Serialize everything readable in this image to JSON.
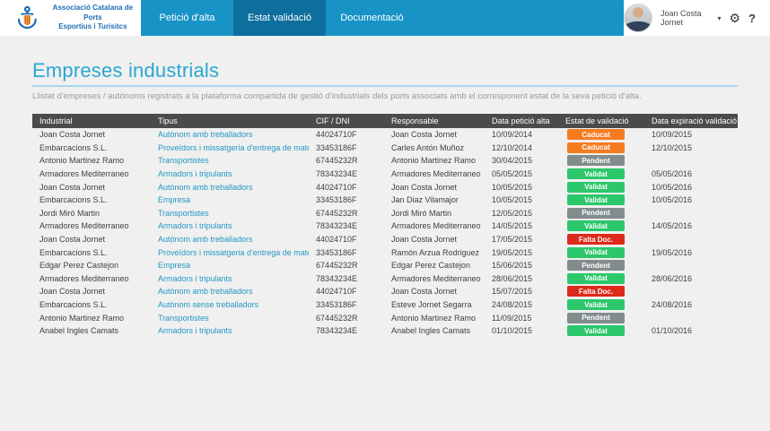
{
  "brand": {
    "line1": "Associació Catalana de Ports",
    "line2": "Esportius i Turisitcs"
  },
  "nav": {
    "tabs": [
      {
        "label": "Petició d'alta",
        "active": false
      },
      {
        "label": "Estat validació",
        "active": true
      },
      {
        "label": "Documentació",
        "active": false
      }
    ]
  },
  "user": {
    "name": "Joan Costa Jornet",
    "caret_glyph": "▾",
    "gear_glyph": "⚙",
    "help_glyph": "?"
  },
  "page": {
    "title": "Empreses industrials",
    "subtitle": "Llistat d'empreses / autònoms registrats a la plataforma compartida de gestió d'industrials dels ports associats amb el corresponent estat de la seva petició d'alta."
  },
  "colors": {
    "nav_bar": "#1793c6",
    "nav_active_tab": "#0e6f9e",
    "title": "#2ba7d4",
    "link": "#2697c6",
    "table_header_bg": "#4b4b4b"
  },
  "table": {
    "columns": [
      "Industrial",
      "Tipus",
      "CIF / DNI",
      "Responsable",
      "Data petició alta",
      "Estat de validació",
      "Data expiració validació"
    ],
    "status_colors": {
      "Caducat": "#f47c20",
      "Validat": "#2bc76a",
      "Pendent": "#828c8c",
      "Falta Doc.": "#dd2a1b"
    },
    "rows": [
      {
        "industrial": "Joan Costa Jornet",
        "tipus": "Autònom amb treballadors",
        "cif": "44024710F",
        "responsable": "Joan Costa Jornet",
        "data_alta": "10/09/2014",
        "estat": "Caducat",
        "data_expiracio": "10/09/2015"
      },
      {
        "industrial": "Embarcacions S.L.",
        "tipus": "Proveïdors i missatgeria d'entrega de material",
        "cif": "33453186F",
        "responsable": "Carles Antón Muñoz",
        "data_alta": "12/10/2014",
        "estat": "Caducat",
        "data_expiracio": "12/10/2015"
      },
      {
        "industrial": "Antonio Martinez Ramo",
        "tipus": "Transportistes",
        "cif": "67445232R",
        "responsable": "Antonio Martinez Ramo",
        "data_alta": "30/04/2015",
        "estat": "Pendent",
        "data_expiracio": ""
      },
      {
        "industrial": "Armadores Mediterraneo",
        "tipus": "Armadors i tripulants",
        "cif": "78343234E",
        "responsable": "Armadores Mediterraneo",
        "data_alta": "05/05/2015",
        "estat": "Validat",
        "data_expiracio": "05/05/2016"
      },
      {
        "industrial": "Joan Costa Jornet",
        "tipus": "Autònom amb treballadors",
        "cif": "44024710F",
        "responsable": "Joan Costa Jornet",
        "data_alta": "10/05/2015",
        "estat": "Validat",
        "data_expiracio": "10/05/2016"
      },
      {
        "industrial": "Embarcacions S.L.",
        "tipus": "Empresa",
        "cif": "33453186F",
        "responsable": "Jan Diaz Vilamajor",
        "data_alta": "10/05/2015",
        "estat": "Validat",
        "data_expiracio": "10/05/2016"
      },
      {
        "industrial": "Jordi Miró Martin",
        "tipus": "Transportistes",
        "cif": "67445232R",
        "responsable": "Jordi Miró Martin",
        "data_alta": "12/05/2015",
        "estat": "Pendent",
        "data_expiracio": ""
      },
      {
        "industrial": "Armadores Mediterraneo",
        "tipus": "Armadors i tripulants",
        "cif": "78343234E",
        "responsable": "Armadores Mediterraneo",
        "data_alta": "14/05/2015",
        "estat": "Validat",
        "data_expiracio": "14/05/2016"
      },
      {
        "industrial": "Joan Costa Jornet",
        "tipus": "Autònom amb treballadors",
        "cif": "44024710F",
        "responsable": "Joan Costa Jornet",
        "data_alta": "17/05/2015",
        "estat": "Falta Doc.",
        "data_expiracio": ""
      },
      {
        "industrial": "Embarcacions S.L.",
        "tipus": "Proveïdors i missatgeria d'entrega de material",
        "cif": "33453186F",
        "responsable": "Ramón Arzua Rodriguez",
        "data_alta": "19/05/2015",
        "estat": "Validat",
        "data_expiracio": "19/05/2016"
      },
      {
        "industrial": "Edgar Perez Castejon",
        "tipus": "Empresa",
        "cif": "67445232R",
        "responsable": "Edgar Perez Castejon",
        "data_alta": "15/06/2015",
        "estat": "Pendent",
        "data_expiracio": ""
      },
      {
        "industrial": "Armadores Mediterraneo",
        "tipus": "Armadors i tripulants",
        "cif": "78343234E",
        "responsable": "Armadores Mediterraneo",
        "data_alta": "28/06/2015",
        "estat": "Validat",
        "data_expiracio": "28/06/2016"
      },
      {
        "industrial": "Joan Costa Jornet",
        "tipus": "Autònom amb treballadors",
        "cif": "44024710F",
        "responsable": "Joan Costa Jornet",
        "data_alta": "15/07/2015",
        "estat": "Falta Doc.",
        "data_expiracio": ""
      },
      {
        "industrial": "Embarcacions S.L.",
        "tipus": "Autònom sense treballadors",
        "cif": "33453186F",
        "responsable": "Esteve Jornet Segarra",
        "data_alta": "24/08/2015",
        "estat": "Validat",
        "data_expiracio": "24/08/2016"
      },
      {
        "industrial": "Antonio Martinez Ramo",
        "tipus": "Transportistes",
        "cif": "67445232R",
        "responsable": "Antonio Martinez Ramo",
        "data_alta": "11/09/2015",
        "estat": "Pendent",
        "data_expiracio": ""
      },
      {
        "industrial": "Anabel Ingles Camats",
        "tipus": "Armadors i tripulants",
        "cif": "78343234E",
        "responsable": "Anabel Ingles Camats",
        "data_alta": "01/10/2015",
        "estat": "Validat",
        "data_expiracio": "01/10/2016"
      }
    ]
  }
}
